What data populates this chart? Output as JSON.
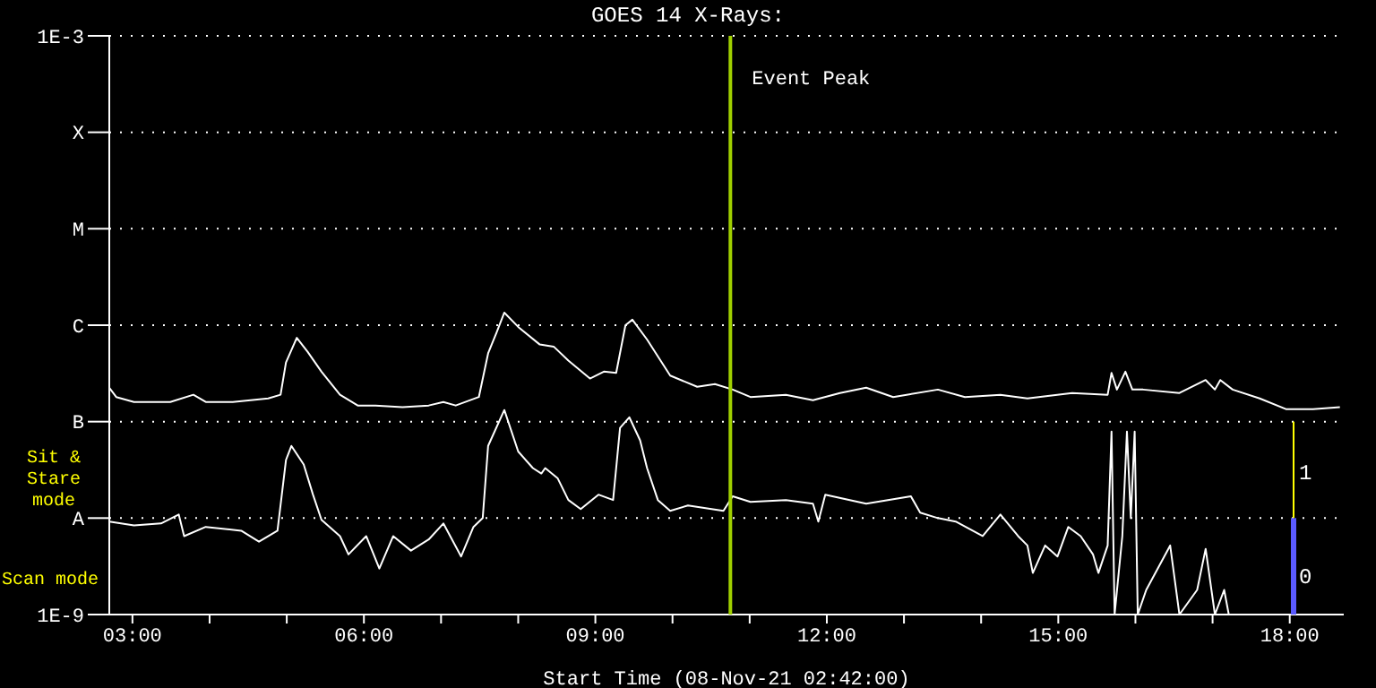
{
  "chart_data": {
    "type": "line",
    "title": "GOES 14 X-Rays:",
    "xlabel": "Start Time (08-Nov-21 02:42:00)",
    "xlim": [
      2.7,
      18.7
    ],
    "xticks": [
      {
        "value": 3,
        "label": "03:00"
      },
      {
        "value": 4,
        "label": null
      },
      {
        "value": 5,
        "label": null
      },
      {
        "value": 6,
        "label": "06:00"
      },
      {
        "value": 7,
        "label": null
      },
      {
        "value": 8,
        "label": null
      },
      {
        "value": 9,
        "label": "09:00"
      },
      {
        "value": 10,
        "label": null
      },
      {
        "value": 11,
        "label": null
      },
      {
        "value": 12,
        "label": "12:00"
      },
      {
        "value": 13,
        "label": null
      },
      {
        "value": 14,
        "label": null
      },
      {
        "value": 15,
        "label": "15:00"
      },
      {
        "value": 16,
        "label": null
      },
      {
        "value": 17,
        "label": null
      },
      {
        "value": 18,
        "label": "18:00"
      }
    ],
    "ylim": [
      1e-09,
      0.001
    ],
    "yticks": [
      {
        "value": 1e-09,
        "label": "1E-9"
      },
      {
        "value": 1e-08,
        "label": "A"
      },
      {
        "value": 1e-07,
        "label": "B"
      },
      {
        "value": 1e-06,
        "label": "C"
      },
      {
        "value": 1e-05,
        "label": "M"
      },
      {
        "value": 0.0001,
        "label": "X"
      },
      {
        "value": 0.001,
        "label": "1E-3"
      }
    ],
    "log": "y",
    "grid": "y",
    "legend": false,
    "marker": "none",
    "line_style": "solid",
    "ref_lines": [
      {
        "axis": "x",
        "value": 10.75,
        "label": "Event Peak",
        "color": "#a0d000"
      }
    ],
    "annotations": [
      "Sit & Stare mode",
      "Scan mode",
      "1",
      "0"
    ],
    "series": [
      {
        "color": "#ffffff",
        "x": [
          2.7,
          2.79,
          3.02,
          3.49,
          3.79,
          3.95,
          4.3,
          4.76,
          4.92,
          4.99,
          5.13,
          5.27,
          5.45,
          5.69,
          5.92,
          6.15,
          6.5,
          6.84,
          7.03,
          7.19,
          7.49,
          7.61,
          7.72,
          7.82,
          8.0,
          8.28,
          8.46,
          8.65,
          8.93,
          9.11,
          9.27,
          9.39,
          9.48,
          9.67,
          9.97,
          10.32,
          10.55,
          10.78,
          11.01,
          11.47,
          11.82,
          12.17,
          12.51,
          12.86,
          13.44,
          13.79,
          14.25,
          14.6,
          15.18,
          15.64,
          15.69,
          15.76,
          15.87,
          15.96,
          16.1,
          16.57,
          16.91,
          17.03,
          17.1,
          17.26,
          17.61,
          17.95,
          18.3,
          18.65
        ],
        "values": [
          2.25e-07,
          1.8e-07,
          1.6e-07,
          1.6e-07,
          1.9e-07,
          1.6e-07,
          1.6e-07,
          1.74e-07,
          1.9e-07,
          4.1e-07,
          7.4e-07,
          5.3e-07,
          3.3e-07,
          1.9e-07,
          1.47e-07,
          1.47e-07,
          1.41e-07,
          1.47e-07,
          1.6e-07,
          1.47e-07,
          1.8e-07,
          5.1e-07,
          8.4e-07,
          1.35e-06,
          9.6e-07,
          6.3e-07,
          6e-07,
          4.3e-07,
          2.8e-07,
          3.3e-07,
          3.2e-07,
          1e-06,
          1.14e-06,
          7.1e-07,
          3e-07,
          2.3e-07,
          2.45e-07,
          2.15e-07,
          1.8e-07,
          1.9e-07,
          1.67e-07,
          1.98e-07,
          2.25e-07,
          1.8e-07,
          2.15e-07,
          1.8e-07,
          1.9e-07,
          1.74e-07,
          1.98e-07,
          1.9e-07,
          3.2e-07,
          2.15e-07,
          3.3e-07,
          2.15e-07,
          2.15e-07,
          1.98e-07,
          2.7e-07,
          2.15e-07,
          2.7e-07,
          2.15e-07,
          1.74e-07,
          1.35e-07,
          1.35e-07,
          1.41e-07
        ]
      },
      {
        "color": "#ffffff",
        "x": [
          2.7,
          3.02,
          3.37,
          3.6,
          3.67,
          3.95,
          4.41,
          4.64,
          4.88,
          4.99,
          5.06,
          5.22,
          5.34,
          5.45,
          5.69,
          5.8,
          6.03,
          6.2,
          6.38,
          6.61,
          6.84,
          7.03,
          7.26,
          7.42,
          7.54,
          7.61,
          7.82,
          8.0,
          8.19,
          8.3,
          8.35,
          8.51,
          8.65,
          8.81,
          9.04,
          9.23,
          9.32,
          9.44,
          9.58,
          9.67,
          9.81,
          9.97,
          10.2,
          10.66,
          10.78,
          11.01,
          11.47,
          11.82,
          11.89,
          11.98,
          12.51,
          13.09,
          13.21,
          13.44,
          13.67,
          14.02,
          14.25,
          14.48,
          14.6,
          14.67,
          14.83,
          14.99,
          15.13,
          15.29,
          15.45,
          15.52,
          15.64,
          15.69,
          15.73,
          15.83,
          15.89,
          15.94,
          15.99,
          16.03,
          16.14,
          16.45,
          16.57,
          16.8,
          16.91,
          17.03,
          17.15,
          17.21
        ],
        "values": [
          9.2e-09,
          8.4e-09,
          8.8e-09,
          1.09e-08,
          6.5e-09,
          8.1e-09,
          7.4e-09,
          5.7e-09,
          7.4e-09,
          4e-08,
          5.6e-08,
          3.6e-08,
          1.75e-08,
          9.6e-09,
          6.5e-09,
          4.2e-09,
          6.5e-09,
          3e-09,
          6.5e-09,
          4.6e-09,
          6e-09,
          8.8e-09,
          4e-09,
          8.1e-09,
          1e-08,
          5.6e-08,
          1.32e-07,
          4.9e-08,
          3.3e-08,
          2.9e-08,
          3.3e-08,
          2.6e-08,
          1.54e-08,
          1.24e-08,
          1.75e-08,
          1.54e-08,
          8.6e-08,
          1.11e-07,
          6.4e-08,
          3.3e-08,
          1.54e-08,
          1.19e-08,
          1.35e-08,
          1.19e-08,
          1.68e-08,
          1.47e-08,
          1.54e-08,
          1.41e-08,
          9.2e-09,
          1.75e-08,
          1.41e-08,
          1.68e-08,
          1.14e-08,
          1e-08,
          9.2e-09,
          6.5e-09,
          1.09e-08,
          6.5e-09,
          5.2e-09,
          2.7e-09,
          5.2e-09,
          4e-09,
          8.1e-09,
          6.5e-09,
          4.2e-09,
          2.7e-09,
          5.2e-09,
          7.9e-08,
          1e-09,
          6.5e-09,
          7.9e-08,
          1e-08,
          7.9e-08,
          1e-09,
          1.8e-09,
          5.2e-09,
          1e-09,
          1.8e-09,
          4.8e-09,
          1e-09,
          1.8e-09,
          1e-09
        ]
      }
    ]
  }
}
